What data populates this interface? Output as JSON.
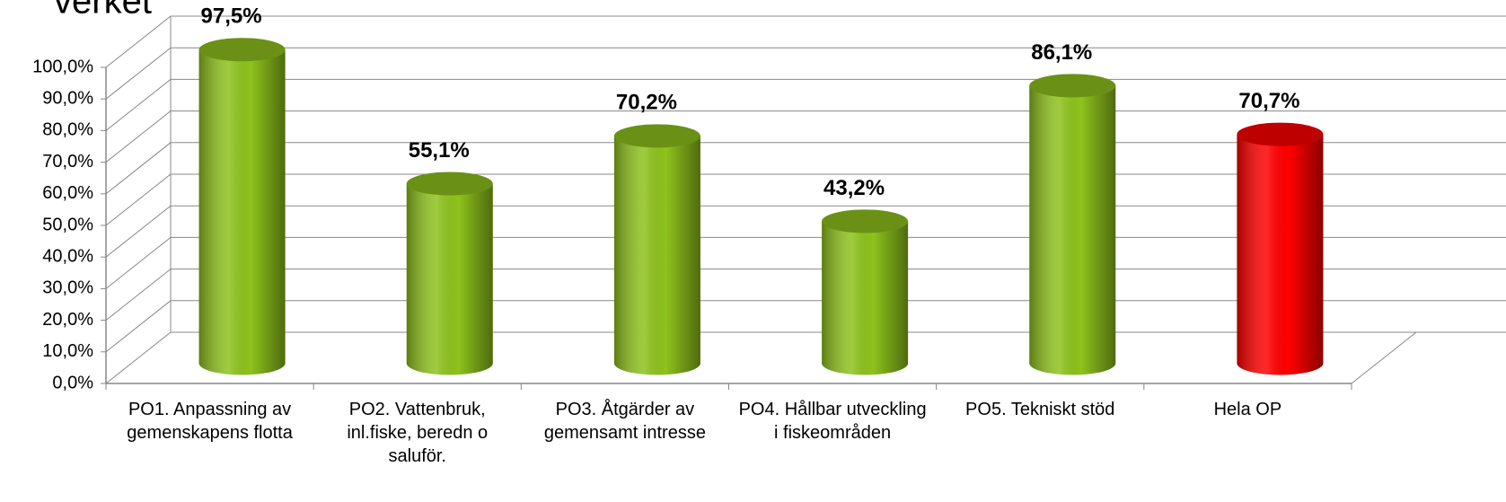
{
  "chart_data": {
    "type": "bar",
    "title": "verket",
    "categories": [
      "PO1. Anpassning av gemenskapens flotta",
      "PO2. Vattenbruk, inl.fiske, beredn o saluför.",
      "PO3. Åtgärder av gemensamt intresse",
      "PO4. Hållbar utveckling i fiskeområden",
      "PO5. Tekniskt stöd",
      "Hela OP"
    ],
    "values": [
      97.5,
      55.1,
      70.2,
      43.2,
      86.1,
      70.7
    ],
    "value_labels": [
      "97,5%",
      "55,1%",
      "70,2%",
      "43,2%",
      "86,1%",
      "70,7%"
    ],
    "colors": [
      "#8ec21c",
      "#8ec21c",
      "#8ec21c",
      "#8ec21c",
      "#8ec21c",
      "#ff0000"
    ],
    "ylim": [
      0,
      100
    ],
    "yticks": [
      {
        "value": 0,
        "label": "0,0%"
      },
      {
        "value": 10,
        "label": "10,0%"
      },
      {
        "value": 20,
        "label": "20,0%"
      },
      {
        "value": 30,
        "label": "30,0%"
      },
      {
        "value": 40,
        "label": "40,0%"
      },
      {
        "value": 50,
        "label": "50,0%"
      },
      {
        "value": 60,
        "label": "60,0%"
      },
      {
        "value": 70,
        "label": "70,0%"
      },
      {
        "value": 80,
        "label": "80,0%"
      },
      {
        "value": 90,
        "label": "90,0%"
      },
      {
        "value": 100,
        "label": "100,0%"
      }
    ],
    "grid": true
  }
}
